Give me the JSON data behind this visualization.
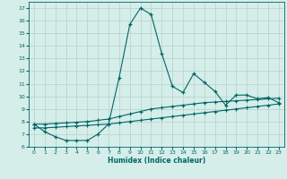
{
  "xlabel": "Humidex (Indice chaleur)",
  "xlim": [
    -0.5,
    23.5
  ],
  "ylim": [
    6,
    17.5
  ],
  "yticks": [
    6,
    7,
    8,
    9,
    10,
    11,
    12,
    13,
    14,
    15,
    16,
    17
  ],
  "xticks": [
    0,
    1,
    2,
    3,
    4,
    5,
    6,
    7,
    8,
    9,
    10,
    11,
    12,
    13,
    14,
    15,
    16,
    17,
    18,
    19,
    20,
    21,
    22,
    23
  ],
  "background_color": "#d5eeea",
  "grid_color": "#b8cfc9",
  "line_color": "#006666",
  "line1_x": [
    0,
    1,
    2,
    3,
    4,
    5,
    6,
    7,
    8,
    9,
    10,
    11,
    12,
    13,
    14,
    15,
    16,
    17,
    18,
    19,
    20,
    21,
    22,
    23
  ],
  "line1_y": [
    7.8,
    7.2,
    6.8,
    6.5,
    6.5,
    6.5,
    7.0,
    7.8,
    11.5,
    15.7,
    17.0,
    16.5,
    13.4,
    10.8,
    10.3,
    11.8,
    11.1,
    10.4,
    9.3,
    10.1,
    10.1,
    9.8,
    9.9,
    9.5
  ],
  "line2_x": [
    0,
    1,
    2,
    3,
    4,
    5,
    6,
    7,
    8,
    9,
    10,
    11,
    12,
    13,
    14,
    15,
    16,
    17,
    18,
    19,
    20,
    21,
    22,
    23
  ],
  "line2_y": [
    7.5,
    7.5,
    7.55,
    7.6,
    7.65,
    7.7,
    7.75,
    7.8,
    7.9,
    8.0,
    8.1,
    8.2,
    8.3,
    8.4,
    8.5,
    8.6,
    8.7,
    8.8,
    8.9,
    9.0,
    9.1,
    9.2,
    9.3,
    9.4
  ],
  "line3_x": [
    0,
    1,
    2,
    3,
    4,
    5,
    6,
    7,
    8,
    9,
    10,
    11,
    12,
    13,
    14,
    15,
    16,
    17,
    18,
    19,
    20,
    21,
    22,
    23
  ],
  "line3_y": [
    7.8,
    7.8,
    7.85,
    7.9,
    7.95,
    8.0,
    8.1,
    8.2,
    8.4,
    8.6,
    8.8,
    9.0,
    9.1,
    9.2,
    9.3,
    9.4,
    9.5,
    9.55,
    9.6,
    9.65,
    9.7,
    9.75,
    9.8,
    9.85
  ]
}
